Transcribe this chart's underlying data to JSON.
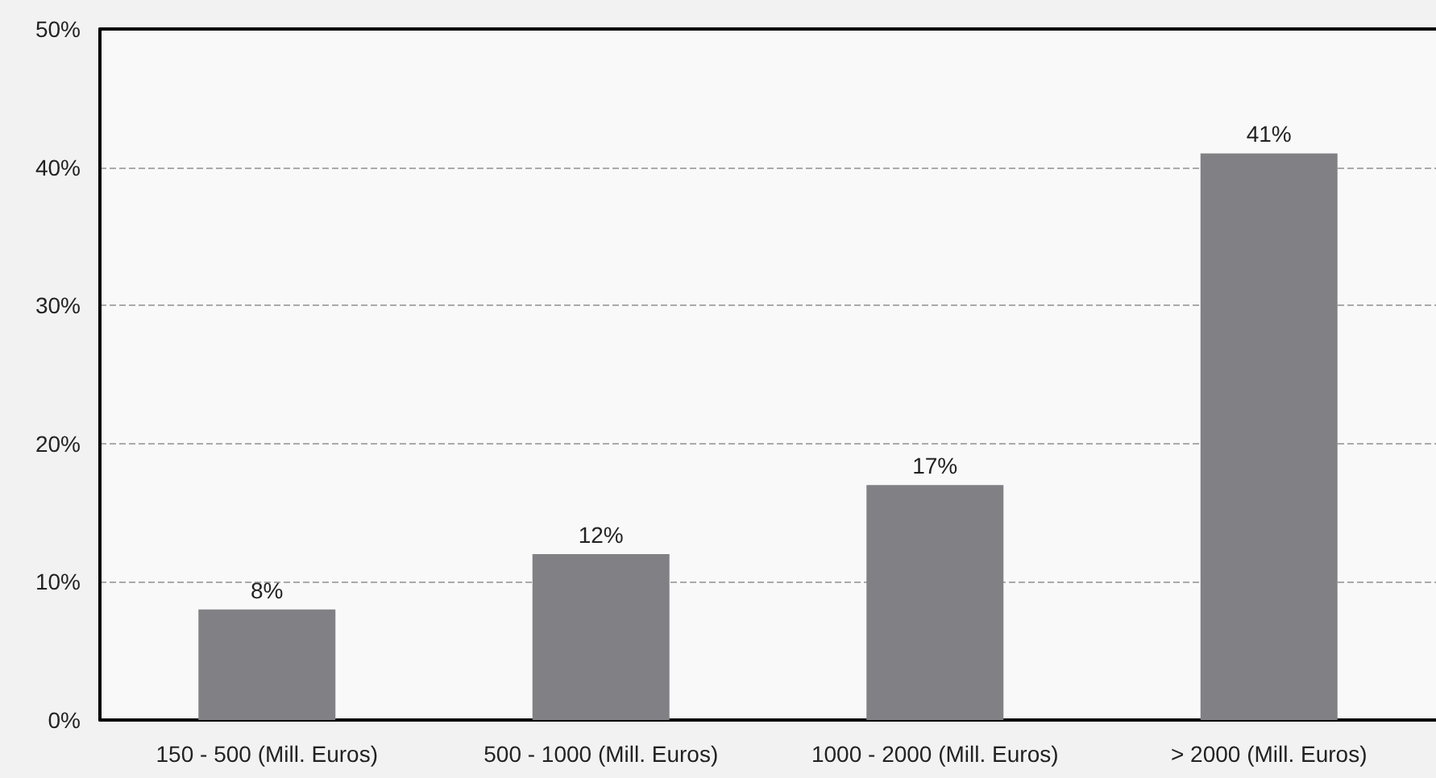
{
  "chart_data": {
    "type": "bar",
    "categories": [
      "150 - 500 (Mill. Euros)",
      "500 - 1000 (Mill. Euros)",
      "1000 - 2000 (Mill. Euros)",
      "> 2000 (Mill. Euros)"
    ],
    "values": [
      8,
      12,
      17,
      41
    ],
    "value_labels": [
      "8%",
      "12%",
      "17%",
      "41%"
    ],
    "color": "#818185",
    "ylim": [
      0,
      50
    ],
    "yticks": [
      {
        "value": 0,
        "label": "0%"
      },
      {
        "value": 10,
        "label": "10%"
      },
      {
        "value": 20,
        "label": "20%"
      },
      {
        "value": 30,
        "label": "30%"
      },
      {
        "value": 40,
        "label": "40%"
      },
      {
        "value": 50,
        "label": "50%"
      }
    ],
    "grid": "y"
  }
}
